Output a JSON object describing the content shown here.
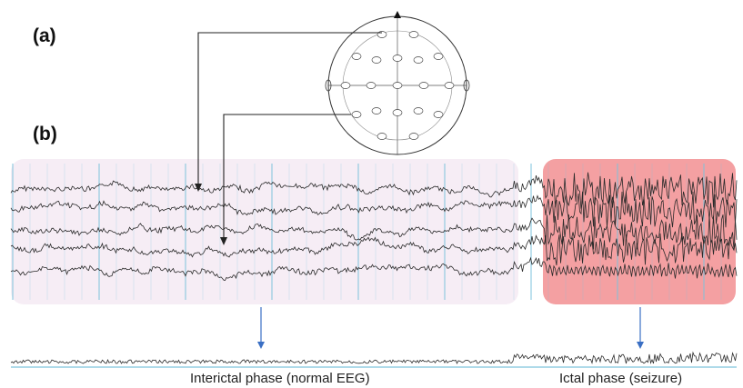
{
  "panels": {
    "a": "(a)",
    "b": "(b)"
  },
  "phases": {
    "interictal": "Interictal phase (normal EEG)",
    "ictal": "Ictal phase (seizure)"
  },
  "colors": {
    "interictal_bg": "#f6edf5",
    "ictal_bg": "#f4a0a2",
    "trace": "#2a2a2a",
    "ictal_trace": "#5a1c1c",
    "grid": "#7ec3dc",
    "arrow": "#3a6fc4"
  },
  "eeg_channels": 5
}
